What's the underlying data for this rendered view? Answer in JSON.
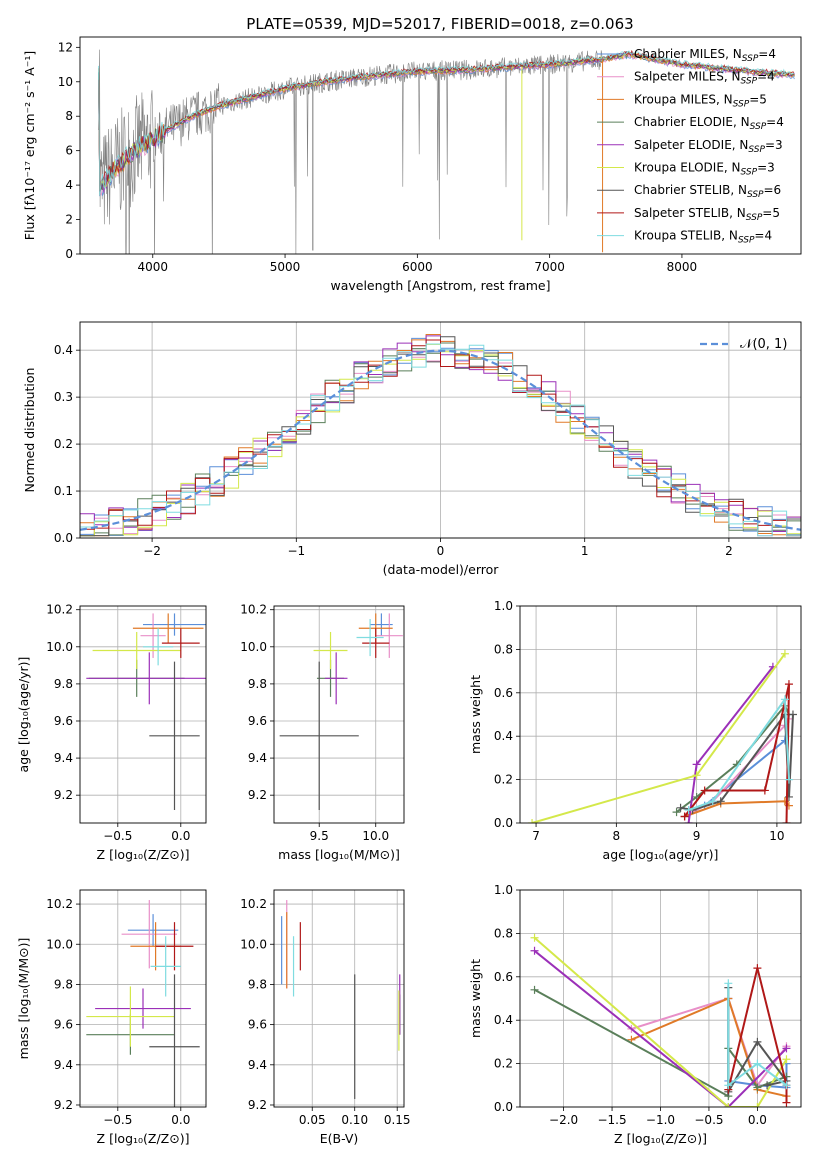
{
  "figure_title": "PLATE=0539, MJD=52017, FIBERID=0018, z=0.063",
  "models": [
    {
      "label": "Chabrier MILES",
      "n": "4",
      "color": "#5b8fd9"
    },
    {
      "label": "Salpeter MILES",
      "n": "4",
      "color": "#e88fc8"
    },
    {
      "label": "Kroupa MILES",
      "n": "5",
      "color": "#e07a28"
    },
    {
      "label": "Chabrier ELODIE",
      "n": "4",
      "color": "#5a7f5a"
    },
    {
      "label": "Salpeter ELODIE",
      "n": "3",
      "color": "#9b30b8"
    },
    {
      "label": "Kroupa ELODIE",
      "n": "3",
      "color": "#d4e84a"
    },
    {
      "label": "Chabrier STELIB",
      "n": "6",
      "color": "#555555"
    },
    {
      "label": "Salpeter STELIB",
      "n": "5",
      "color": "#b01818"
    },
    {
      "label": "Kroupa STELIB",
      "n": "4",
      "color": "#7fdce0"
    }
  ],
  "legend_prefix": "N",
  "legend_sub": "SSP",
  "chart_data": [
    {
      "id": "spectrum",
      "type": "line",
      "xlabel": "wavelength [Angstrom, rest frame]",
      "ylabel": "Flux [fλ10⁻¹⁷ erg cm⁻² s⁻¹ A⁻¹]",
      "xlim": [
        3450,
        8900
      ],
      "ylim": [
        0,
        12.6
      ],
      "xticks": [
        4000,
        5000,
        6000,
        7000,
        8000
      ],
      "yticks": [
        0,
        2,
        4,
        6,
        8,
        10,
        12
      ],
      "grid": false,
      "legend": "right",
      "data_color": "#808080",
      "continuum": [
        [
          3600,
          3.8
        ],
        [
          3700,
          4.8
        ],
        [
          3800,
          5.6
        ],
        [
          3900,
          6.2
        ],
        [
          4000,
          6.6
        ],
        [
          4100,
          7.2
        ],
        [
          4300,
          8.0
        ],
        [
          4500,
          8.6
        ],
        [
          4800,
          9.2
        ],
        [
          5000,
          9.6
        ],
        [
          5300,
          10.0
        ],
        [
          5600,
          10.3
        ],
        [
          6000,
          10.6
        ],
        [
          6400,
          10.7
        ],
        [
          6800,
          10.9
        ],
        [
          7000,
          11.0
        ],
        [
          7400,
          11.3
        ],
        [
          7600,
          11.6
        ],
        [
          8000,
          11.0
        ],
        [
          8500,
          10.6
        ],
        [
          8850,
          10.4
        ]
      ],
      "data_end": 7400
    },
    {
      "id": "residuals",
      "type": "histogram",
      "xlabel": "(data-model)/error",
      "ylabel": "Normed distribution",
      "xlim": [
        -2.5,
        2.5
      ],
      "ylim": [
        0,
        0.46
      ],
      "xticks": [
        -2,
        -1,
        0,
        1,
        2
      ],
      "yticks": [
        0.0,
        0.1,
        0.2,
        0.3,
        0.4
      ],
      "grid": true,
      "legend": "upper right",
      "normal_label": "𝒩(0, 1)",
      "normal_color": "#5b8fd9"
    },
    {
      "id": "age_vs_Z",
      "type": "errorbar",
      "xlabel": "Z [log₁₀(Z/Z⊙)]",
      "ylabel": "age  [log₁₀(age/yr)]",
      "xlim": [
        -0.8,
        0.2
      ],
      "ylim": [
        9.05,
        10.22
      ],
      "xticks": [
        -0.5,
        0.0
      ],
      "yticks": [
        9.2,
        9.4,
        9.6,
        9.8,
        10.0,
        10.2
      ],
      "grid": true,
      "points": [
        {
          "x": -0.05,
          "xerr": 0.25,
          "y": 10.12,
          "yerr": 0.06
        },
        {
          "x": -0.22,
          "xerr": 0.1,
          "y": 10.06,
          "yerr": 0.12
        },
        {
          "x": -0.1,
          "xerr": 0.28,
          "y": 10.1,
          "yerr": 0.08
        },
        {
          "x": -0.35,
          "xerr": 0.38,
          "y": 9.83,
          "yerr": 0.1
        },
        {
          "x": -0.25,
          "xerr": 0.5,
          "y": 9.83,
          "yerr": 0.14
        },
        {
          "x": -0.35,
          "xerr": 0.35,
          "y": 9.98,
          "yerr": 0.1
        },
        {
          "x": -0.05,
          "xerr": 0.2,
          "y": 9.52,
          "yerr": 0.4
        },
        {
          "x": 0.0,
          "xerr": 0.15,
          "y": 10.02,
          "yerr": 0.08
        },
        {
          "x": -0.18,
          "xerr": 0.12,
          "y": 10.0,
          "yerr": 0.1
        }
      ]
    },
    {
      "id": "age_vs_mass",
      "type": "errorbar",
      "xlabel": "mass [log₁₀(M/M⊙)]",
      "ylabel": "",
      "xlim": [
        9.1,
        10.25
      ],
      "ylim": [
        9.05,
        10.22
      ],
      "xticks": [
        9.5,
        10.0
      ],
      "yticks": [
        9.2,
        9.4,
        9.6,
        9.8,
        10.0,
        10.2
      ],
      "grid": true,
      "points": [
        {
          "x": 10.05,
          "xerr": 0.1,
          "y": 10.12,
          "yerr": 0.06
        },
        {
          "x": 10.12,
          "xerr": 0.12,
          "y": 10.06,
          "yerr": 0.12
        },
        {
          "x": 10.0,
          "xerr": 0.15,
          "y": 10.1,
          "yerr": 0.08
        },
        {
          "x": 9.6,
          "xerr": 0.12,
          "y": 9.83,
          "yerr": 0.1
        },
        {
          "x": 9.65,
          "xerr": 0.1,
          "y": 9.83,
          "yerr": 0.14
        },
        {
          "x": 9.6,
          "xerr": 0.15,
          "y": 9.98,
          "yerr": 0.1
        },
        {
          "x": 9.5,
          "xerr": 0.35,
          "y": 9.52,
          "yerr": 0.4
        },
        {
          "x": 10.0,
          "xerr": 0.12,
          "y": 10.02,
          "yerr": 0.08
        },
        {
          "x": 9.95,
          "xerr": 0.12,
          "y": 10.05,
          "yerr": 0.1
        }
      ]
    },
    {
      "id": "weight_vs_age",
      "type": "line",
      "xlabel": "age  [log₁₀(age/yr)]",
      "ylabel": "mass weight",
      "xlim": [
        6.8,
        10.3
      ],
      "ylim": [
        0,
        1.0
      ],
      "xticks": [
        7,
        8,
        9,
        10
      ],
      "yticks": [
        0.0,
        0.2,
        0.4,
        0.6,
        0.8,
        1.0
      ],
      "grid": true,
      "series": [
        {
          "x": [
            8.85,
            9.1,
            10.1,
            10.15
          ],
          "y": [
            0.03,
            0.08,
            0.38,
            0.5
          ]
        },
        {
          "x": [
            8.9,
            9.2,
            10.1,
            10.15
          ],
          "y": [
            0.04,
            0.1,
            0.45,
            0.48
          ]
        },
        {
          "x": [
            8.85,
            9.3,
            10.1,
            10.15,
            10.1
          ],
          "y": [
            0.03,
            0.09,
            0.1,
            0.08,
            0.1
          ]
        },
        {
          "x": [
            8.75,
            9.0,
            9.5,
            10.1,
            10.15
          ],
          "y": [
            0.05,
            0.12,
            0.27,
            0.54,
            0.5
          ]
        },
        {
          "x": [
            8.9,
            9.0,
            9.95
          ],
          "y": [
            0.0,
            0.27,
            0.72
          ]
        },
        {
          "x": [
            6.95,
            9.0,
            10.1
          ],
          "y": [
            0.0,
            0.22,
            0.78
          ]
        },
        {
          "x": [
            8.8,
            8.95,
            9.3,
            10.1,
            10.15,
            10.2
          ],
          "y": [
            0.07,
            0.06,
            0.1,
            0.5,
            0.12,
            0.5
          ]
        },
        {
          "x": [
            8.85,
            9.1,
            9.85,
            10.15,
            10.12
          ],
          "y": [
            0.03,
            0.15,
            0.15,
            0.64,
            0.0
          ]
        },
        {
          "x": [
            8.9,
            9.2,
            10.1,
            10.15
          ],
          "y": [
            0.06,
            0.1,
            0.57,
            0.2
          ]
        }
      ]
    },
    {
      "id": "mass_vs_Z",
      "type": "errorbar",
      "xlabel": "Z [log₁₀(Z/Z⊙)]",
      "ylabel": "mass [log₁₀(M/M⊙)]",
      "xlim": [
        -0.8,
        0.2
      ],
      "ylim": [
        9.19,
        10.27
      ],
      "xticks": [
        -0.5,
        0.0
      ],
      "yticks": [
        9.2,
        9.4,
        9.6,
        9.8,
        10.0,
        10.2
      ],
      "grid": true,
      "points": [
        {
          "x": -0.22,
          "xerr": 0.2,
          "y": 10.07,
          "yerr": 0.08
        },
        {
          "x": -0.25,
          "xerr": 0.22,
          "y": 10.05,
          "yerr": 0.17
        },
        {
          "x": -0.2,
          "xerr": 0.2,
          "y": 9.99,
          "yerr": 0.12
        },
        {
          "x": -0.4,
          "xerr": 0.35,
          "y": 9.55,
          "yerr": 0.1
        },
        {
          "x": -0.3,
          "xerr": 0.38,
          "y": 9.68,
          "yerr": 0.1
        },
        {
          "x": -0.4,
          "xerr": 0.35,
          "y": 9.64,
          "yerr": 0.15
        },
        {
          "x": -0.05,
          "xerr": 0.2,
          "y": 9.49,
          "yerr": 0.36
        },
        {
          "x": -0.05,
          "xerr": 0.15,
          "y": 9.99,
          "yerr": 0.12
        },
        {
          "x": -0.12,
          "xerr": 0.12,
          "y": 9.89,
          "yerr": 0.15
        }
      ]
    },
    {
      "id": "mass_vs_ebv",
      "type": "errorbar",
      "xlabel": "E(B-V)",
      "ylabel": "",
      "xlim": [
        0.005,
        0.158
      ],
      "ylim": [
        9.19,
        10.27
      ],
      "xticks": [
        0.05,
        0.1,
        0.15
      ],
      "yticks": [
        9.2,
        9.4,
        9.6,
        9.8,
        10.0,
        10.2
      ],
      "grid": true,
      "points": [
        {
          "x": 0.014,
          "xerr": 0.0,
          "y": 9.97,
          "yerr": 0.17
        },
        {
          "x": 0.02,
          "xerr": 0.0,
          "y": 10.0,
          "yerr": 0.22
        },
        {
          "x": 0.02,
          "xerr": 0.0,
          "y": 9.97,
          "yerr": 0.19
        },
        {
          "x": 0.153,
          "xerr": 0.0,
          "y": 9.65,
          "yerr": 0.1
        },
        {
          "x": 0.153,
          "xerr": 0.0,
          "y": 9.7,
          "yerr": 0.15
        },
        {
          "x": 0.152,
          "xerr": 0.0,
          "y": 9.62,
          "yerr": 0.15
        },
        {
          "x": 0.1,
          "xerr": 0.0,
          "y": 9.54,
          "yerr": 0.31
        },
        {
          "x": 0.036,
          "xerr": 0.0,
          "y": 9.99,
          "yerr": 0.12
        },
        {
          "x": 0.028,
          "xerr": 0.0,
          "y": 9.89,
          "yerr": 0.15
        }
      ]
    },
    {
      "id": "weight_vs_Z",
      "type": "line",
      "xlabel": "Z [log₁₀(Z/Z⊙)]",
      "ylabel": "mass weight",
      "xlim": [
        -2.45,
        0.45
      ],
      "ylim": [
        0,
        1.0
      ],
      "xticks": [
        -2.0,
        -1.5,
        -1.0,
        -0.5,
        0.0
      ],
      "yticks": [
        0.0,
        0.2,
        0.4,
        0.6,
        0.8,
        1.0
      ],
      "grid": true,
      "series": [
        {
          "x": [
            -0.3,
            -0.3,
            0.0,
            0.3,
            0.3
          ],
          "y": [
            0.5,
            0.12,
            0.1,
            0.09,
            0.2
          ]
        },
        {
          "x": [
            -1.3,
            -0.3,
            0.0,
            0.3
          ],
          "y": [
            0.36,
            0.5,
            0.1,
            0.28
          ]
        },
        {
          "x": [
            -1.3,
            -0.3,
            0.0,
            0.3
          ],
          "y": [
            0.31,
            0.5,
            0.08,
            0.05
          ]
        },
        {
          "x": [
            -2.3,
            -0.3,
            -0.3,
            0.0,
            0.3
          ],
          "y": [
            0.54,
            0.05,
            0.27,
            0.09,
            0.14
          ]
        },
        {
          "x": [
            -2.3,
            -0.3,
            0.3
          ],
          "y": [
            0.72,
            0.0,
            0.27
          ]
        },
        {
          "x": [
            -2.3,
            -0.3,
            0.0,
            0.3
          ],
          "y": [
            0.78,
            0.0,
            0.0,
            0.22
          ]
        },
        {
          "x": [
            -0.3,
            -0.3,
            0.0,
            0.3,
            0.1
          ],
          "y": [
            0.55,
            0.07,
            0.3,
            0.12,
            0.1
          ]
        },
        {
          "x": [
            -0.3,
            0.0,
            0.3,
            0.3
          ],
          "y": [
            0.08,
            0.64,
            0.1,
            0.02
          ]
        },
        {
          "x": [
            -0.3,
            -0.3,
            0.0,
            0.3
          ],
          "y": [
            0.57,
            0.1,
            0.2,
            0.1
          ]
        }
      ]
    }
  ]
}
